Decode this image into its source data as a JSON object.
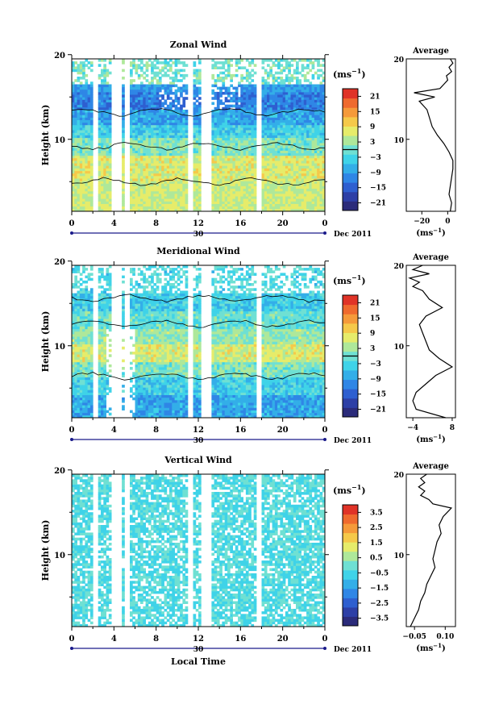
{
  "colors": [
    "#2b2b7a",
    "#2d3fa6",
    "#2e5fd0",
    "#2f86e6",
    "#33aee8",
    "#3fd3e8",
    "#6fe0d3",
    "#aee89a",
    "#e6ec6a",
    "#f5c94a",
    "#f59a3a",
    "#ef6a2e",
    "#e03327"
  ],
  "chart_data": [
    {
      "type": "heatmap",
      "title": "Zonal Wind",
      "ylabel": "Height (km)",
      "x_ticks": [
        "0",
        "4",
        "8",
        "12",
        "16",
        "20",
        "0"
      ],
      "day_label": "30",
      "month_label": "Dec 2011",
      "y_ticks": [
        "10",
        "20"
      ],
      "xlim": [
        0,
        24
      ],
      "ylim": [
        1.5,
        19.5
      ],
      "unit_label": "(ms",
      "unit_exp": "−1",
      "colorbar_ticks": [
        "21",
        "15",
        "9",
        "3",
        "−3",
        "−9",
        "−15",
        "−21"
      ],
      "colorbar_range": [
        -24,
        24
      ],
      "contour_marker": 0,
      "profile": {
        "title": "Average",
        "x_ticks": [
          "−20",
          "0"
        ],
        "xlabel": "(ms",
        "xlabel_exp": "−1",
        "y_ticks": [
          "10",
          "20"
        ],
        "xlim": [
          -32,
          6
        ],
        "heights": [
          1.5,
          2.5,
          3.5,
          4.5,
          5.5,
          6.5,
          7.5,
          8.5,
          9.5,
          10.5,
          11.5,
          12.5,
          13.5,
          14.5,
          15.0,
          15.5,
          16.0,
          16.5,
          17.0,
          17.5,
          18.0,
          18.5,
          19.0,
          19.5
        ],
        "values": [
          2,
          3,
          1,
          2,
          3,
          4,
          4,
          1,
          -3,
          -8,
          -12,
          -14,
          -16,
          -22,
          -10,
          -26,
          -6,
          -3,
          0,
          -1,
          3,
          1,
          4,
          2
        ]
      }
    },
    {
      "type": "heatmap",
      "title": "Meridional Wind",
      "ylabel": "Height (km)",
      "x_ticks": [
        "0",
        "4",
        "8",
        "12",
        "16",
        "20",
        "0"
      ],
      "day_label": "30",
      "month_label": "Dec 2011",
      "y_ticks": [
        "10",
        "20"
      ],
      "xlim": [
        0,
        24
      ],
      "ylim": [
        1.5,
        19.5
      ],
      "unit_label": "(ms",
      "unit_exp": "−1",
      "colorbar_ticks": [
        "21",
        "15",
        "9",
        "3",
        "−3",
        "−9",
        "−15",
        "−21"
      ],
      "colorbar_range": [
        -24,
        24
      ],
      "contour_marker": 0,
      "profile": {
        "title": "Average",
        "x_ticks": [
          "−4",
          "8"
        ],
        "xlabel": "(ms",
        "xlabel_exp": "−1",
        "y_ticks": [
          "10",
          "20"
        ],
        "xlim": [
          -6,
          9
        ],
        "heights": [
          1.5,
          2.5,
          3.5,
          4.5,
          5.5,
          6.5,
          7.5,
          8.5,
          9.5,
          10.5,
          11.5,
          12.5,
          13.5,
          14.5,
          15.5,
          16.5,
          17.0,
          17.5,
          18.0,
          18.5,
          19.0,
          19.5
        ],
        "values": [
          6,
          -3,
          -4,
          -3,
          0,
          3,
          8,
          4,
          1,
          0,
          -1,
          -2,
          0,
          5,
          1,
          -1,
          -4,
          -2,
          -5,
          1,
          -4,
          -1
        ]
      }
    },
    {
      "type": "heatmap",
      "title": "Vertical Wind",
      "ylabel": "Height (km)",
      "xlabel": "Local Time",
      "x_ticks": [
        "0",
        "4",
        "8",
        "12",
        "16",
        "20",
        "0"
      ],
      "day_label": "30",
      "month_label": "Dec 2011",
      "y_ticks": [
        "10",
        "20"
      ],
      "xlim": [
        0,
        24
      ],
      "ylim": [
        1.5,
        19.5
      ],
      "unit_label": "(ms",
      "unit_exp": "−1",
      "colorbar_ticks": [
        "3.5",
        "2.5",
        "1.5",
        "0.5",
        "−0.5",
        "−1.5",
        "−2.5",
        "−3.5"
      ],
      "colorbar_range": [
        -4,
        4
      ],
      "profile": {
        "title": "Average",
        "x_ticks": [
          "−0.05",
          "0.10"
        ],
        "xlabel": "(ms",
        "xlabel_exp": "−1",
        "y_ticks": [
          "10",
          "20"
        ],
        "xlim": [
          -0.09,
          0.15
        ],
        "heights": [
          1.5,
          2.5,
          3.5,
          4.5,
          5.5,
          6.5,
          7.5,
          8.5,
          9.5,
          10.5,
          11.5,
          12.5,
          13.5,
          14.5,
          15.0,
          15.5,
          16.0,
          16.5,
          17.0,
          17.5,
          18.0,
          18.5,
          19.0,
          19.5
        ],
        "values": [
          -0.07,
          -0.05,
          -0.03,
          -0.02,
          0.0,
          0.01,
          0.03,
          0.05,
          0.04,
          0.05,
          0.06,
          0.08,
          0.07,
          0.09,
          0.11,
          0.13,
          0.04,
          0.02,
          -0.02,
          0.0,
          -0.03,
          0.0,
          -0.02,
          0.01
        ]
      }
    }
  ]
}
